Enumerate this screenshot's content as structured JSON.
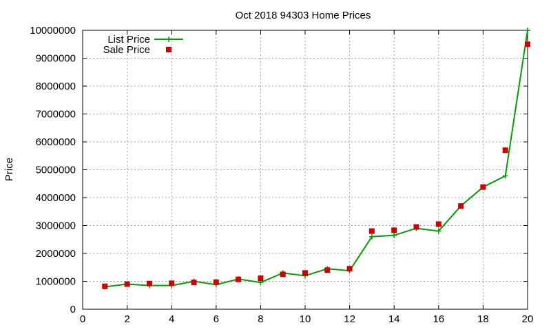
{
  "chart_data": {
    "type": "line",
    "title": "Oct 2018 94303 Home Prices",
    "xlabel": "",
    "ylabel": "Price",
    "xlim": [
      0,
      20
    ],
    "ylim": [
      0,
      10000000
    ],
    "xticks": [
      "0",
      "2",
      "4",
      "6",
      "8",
      "10",
      "12",
      "14",
      "16",
      "18",
      "20"
    ],
    "yticks": [
      "0",
      "1000000",
      "2000000",
      "3000000",
      "4000000",
      "5000000",
      "6000000",
      "7000000",
      "8000000",
      "9000000",
      "10000000"
    ],
    "grid": true,
    "legend_position": "top-left",
    "x": [
      1,
      2,
      3,
      4,
      5,
      6,
      7,
      8,
      9,
      10,
      11,
      12,
      13,
      14,
      15,
      16,
      17,
      18,
      19,
      20
    ],
    "series": [
      {
        "name": "List Price",
        "style": "linespoints",
        "color": "#009e00",
        "marker": "plus",
        "values": [
          800000,
          900000,
          850000,
          850000,
          1000000,
          880000,
          1080000,
          960000,
          1300000,
          1200000,
          1450000,
          1380000,
          2600000,
          2650000,
          2900000,
          2800000,
          3700000,
          4380000,
          4780000,
          10000000
        ]
      },
      {
        "name": "Sale Price",
        "style": "points",
        "color": "#cc0000",
        "marker": "square",
        "values": [
          820000,
          900000,
          920000,
          930000,
          960000,
          970000,
          1070000,
          1110000,
          1250000,
          1300000,
          1400000,
          1450000,
          2800000,
          2830000,
          2950000,
          3050000,
          3700000,
          4380000,
          5700000,
          9500000
        ]
      }
    ]
  }
}
